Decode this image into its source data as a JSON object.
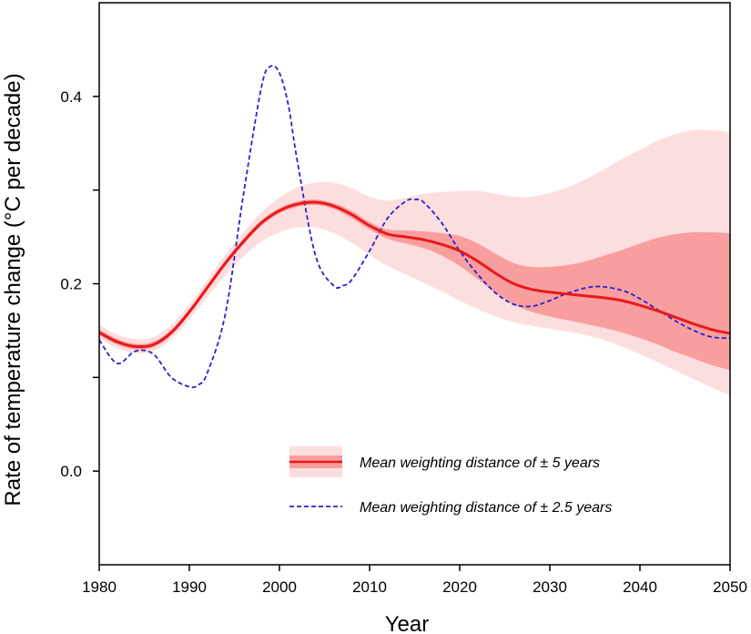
{
  "chart_data": {
    "type": "line",
    "title": "",
    "xlabel": "Year",
    "ylabel": "Rate of temperature change (°C per decade)",
    "xlim": [
      1980,
      2050
    ],
    "ylim": [
      -0.1,
      0.5
    ],
    "x_ticks": [
      "1980",
      "1990",
      "2000",
      "2010",
      "2020",
      "2030",
      "2040",
      "2050"
    ],
    "y_ticks": [
      "0.0",
      "0.2",
      "0.4"
    ],
    "y_tick_values": [
      0.0,
      0.2,
      0.4
    ],
    "y_minor_ticks": [
      0.1,
      0.3
    ],
    "grid": false,
    "legend_position": "lower-right",
    "colors": {
      "red_line": "#e8191c",
      "outer_band": "#fddede",
      "inner_band": "#f89e9e",
      "blue_dashed": "#2424d0"
    },
    "series": [
      {
        "name": "Mean weighting distance of ± 5 years",
        "style": "solid",
        "color": "#e8191c",
        "x": [
          1980,
          1982,
          1984,
          1986,
          1988,
          1990,
          1992,
          1994,
          1996,
          1998,
          2000,
          2002,
          2004,
          2006,
          2008,
          2010,
          2012,
          2014,
          2016,
          2018,
          2020,
          2022,
          2024,
          2026,
          2028,
          2030,
          2032,
          2034,
          2036,
          2038,
          2040,
          2042,
          2044,
          2046,
          2048,
          2050
        ],
        "y": [
          0.148,
          0.138,
          0.133,
          0.135,
          0.148,
          0.17,
          0.196,
          0.222,
          0.245,
          0.265,
          0.278,
          0.285,
          0.287,
          0.283,
          0.274,
          0.262,
          0.253,
          0.25,
          0.247,
          0.242,
          0.235,
          0.224,
          0.211,
          0.2,
          0.194,
          0.191,
          0.189,
          0.187,
          0.185,
          0.182,
          0.177,
          0.171,
          0.164,
          0.157,
          0.151,
          0.147
        ],
        "inner_band": {
          "lower": [
            0.145,
            0.135,
            0.13,
            0.132,
            0.145,
            0.167,
            0.193,
            0.219,
            0.242,
            0.262,
            0.275,
            0.282,
            0.284,
            0.28,
            0.27,
            0.258,
            0.248,
            0.243,
            0.238,
            0.23,
            0.219,
            0.205,
            0.19,
            0.178,
            0.17,
            0.165,
            0.161,
            0.157,
            0.153,
            0.148,
            0.142,
            0.135,
            0.127,
            0.12,
            0.113,
            0.108
          ],
          "upper": [
            0.151,
            0.141,
            0.136,
            0.138,
            0.151,
            0.173,
            0.199,
            0.225,
            0.248,
            0.268,
            0.281,
            0.288,
            0.29,
            0.286,
            0.278,
            0.266,
            0.258,
            0.257,
            0.256,
            0.254,
            0.251,
            0.243,
            0.232,
            0.222,
            0.218,
            0.218,
            0.22,
            0.224,
            0.23,
            0.236,
            0.243,
            0.249,
            0.253,
            0.255,
            0.255,
            0.254
          ]
        },
        "outer_band": {
          "lower": [
            0.141,
            0.131,
            0.126,
            0.128,
            0.141,
            0.162,
            0.186,
            0.209,
            0.229,
            0.245,
            0.255,
            0.26,
            0.26,
            0.254,
            0.244,
            0.231,
            0.219,
            0.21,
            0.201,
            0.192,
            0.182,
            0.173,
            0.165,
            0.159,
            0.155,
            0.152,
            0.149,
            0.145,
            0.14,
            0.133,
            0.125,
            0.116,
            0.107,
            0.098,
            0.089,
            0.081
          ],
          "upper": [
            0.156,
            0.146,
            0.141,
            0.143,
            0.156,
            0.178,
            0.204,
            0.231,
            0.255,
            0.276,
            0.292,
            0.303,
            0.308,
            0.308,
            0.302,
            0.293,
            0.289,
            0.292,
            0.296,
            0.298,
            0.299,
            0.299,
            0.296,
            0.293,
            0.293,
            0.297,
            0.303,
            0.312,
            0.322,
            0.333,
            0.343,
            0.353,
            0.36,
            0.364,
            0.364,
            0.362
          ]
        }
      },
      {
        "name": "Mean weighting distance of ± 2.5 years",
        "style": "dashed",
        "color": "#2424d0",
        "x": [
          1980,
          1982,
          1984,
          1986,
          1988,
          1990,
          1991,
          1992,
          1994,
          1996,
          1998,
          1999,
          2000,
          2001,
          2002,
          2004,
          2006,
          2007,
          2008,
          2010,
          2012,
          2014,
          2015,
          2016,
          2018,
          2020,
          2022,
          2024,
          2026,
          2028,
          2030,
          2032,
          2035,
          2038,
          2040,
          2042,
          2044,
          2046,
          2048,
          2050
        ],
        "y": [
          0.14,
          0.115,
          0.128,
          0.125,
          0.1,
          0.09,
          0.092,
          0.105,
          0.168,
          0.295,
          0.41,
          0.432,
          0.425,
          0.39,
          0.33,
          0.23,
          0.198,
          0.198,
          0.204,
          0.235,
          0.27,
          0.288,
          0.29,
          0.287,
          0.265,
          0.235,
          0.21,
          0.19,
          0.178,
          0.176,
          0.182,
          0.19,
          0.197,
          0.193,
          0.184,
          0.172,
          0.16,
          0.15,
          0.143,
          0.142
        ]
      }
    ],
    "legend": [
      {
        "label": "Mean weighting distance of ± 5 years",
        "style": "solid-band"
      },
      {
        "label": "Mean weighting distance of ± 2.5 years",
        "style": "dashed"
      }
    ]
  }
}
